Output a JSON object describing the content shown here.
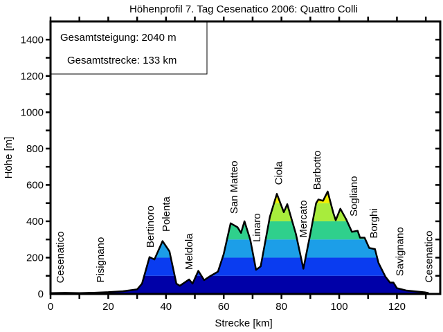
{
  "chart_data": {
    "type": "area",
    "title": "Höhenprofil  7. Tag Cesenatico 2006: Quattro Colli",
    "xlabel": "Strecke [km]",
    "ylabel": "Höhe [m]",
    "xlim": [
      0,
      135
    ],
    "ylim": [
      0,
      1500
    ],
    "xticks": [
      0,
      20,
      40,
      60,
      80,
      100,
      120
    ],
    "xtick_labels": [
      "0",
      "20",
      "40",
      "60",
      "80",
      "100",
      "120"
    ],
    "yticks": [
      0,
      200,
      400,
      600,
      800,
      1000,
      1200,
      1400
    ],
    "ytick_labels": [
      "0",
      "200",
      "400",
      "600",
      "800",
      "1000",
      "1200",
      "1400"
    ],
    "info": {
      "ascent": "Gesamtsteigung: 2040 m",
      "distance": "Gesamtstrecke: 133 km"
    },
    "bands": [
      {
        "from": 0,
        "to": 100,
        "color": "#0000a8"
      },
      {
        "from": 100,
        "to": 200,
        "color": "#0a3cf0"
      },
      {
        "from": 200,
        "to": 300,
        "color": "#1c9ee8"
      },
      {
        "from": 300,
        "to": 400,
        "color": "#2fd08c"
      },
      {
        "from": 400,
        "to": 500,
        "color": "#a8ec3c"
      },
      {
        "from": 500,
        "to": 600,
        "color": "#f2f000"
      }
    ],
    "profile": [
      [
        0,
        5
      ],
      [
        5,
        6
      ],
      [
        10,
        5
      ],
      [
        15,
        7
      ],
      [
        20,
        10
      ],
      [
        25,
        15
      ],
      [
        30,
        25
      ],
      [
        31.7,
        57
      ],
      [
        34.3,
        203
      ],
      [
        36,
        190
      ],
      [
        38.8,
        291
      ],
      [
        41.2,
        235
      ],
      [
        43.6,
        57
      ],
      [
        44.8,
        45
      ],
      [
        48,
        80
      ],
      [
        49.2,
        57
      ],
      [
        51.2,
        127
      ],
      [
        53.2,
        76
      ],
      [
        55,
        95
      ],
      [
        58,
        123
      ],
      [
        60,
        220
      ],
      [
        62.4,
        389
      ],
      [
        64.8,
        367
      ],
      [
        66,
        336
      ],
      [
        67.2,
        400
      ],
      [
        69.2,
        298
      ],
      [
        71.2,
        133
      ],
      [
        72.8,
        152
      ],
      [
        76,
        425
      ],
      [
        78.4,
        551
      ],
      [
        80.8,
        450
      ],
      [
        82,
        494
      ],
      [
        85,
        330
      ],
      [
        87.6,
        139
      ],
      [
        90,
        330
      ],
      [
        92,
        500
      ],
      [
        92.8,
        520
      ],
      [
        94.4,
        513
      ],
      [
        96,
        564
      ],
      [
        98,
        444
      ],
      [
        98.8,
        406
      ],
      [
        100.4,
        469
      ],
      [
        102.4,
        412
      ],
      [
        104.4,
        342
      ],
      [
        106.4,
        348
      ],
      [
        107.2,
        310
      ],
      [
        108.8,
        310
      ],
      [
        110.4,
        253
      ],
      [
        112.4,
        247
      ],
      [
        113.6,
        171
      ],
      [
        116,
        95
      ],
      [
        117.6,
        63
      ],
      [
        118.8,
        63
      ],
      [
        120,
        32
      ],
      [
        123.2,
        19
      ],
      [
        129.6,
        9
      ],
      [
        131,
        5
      ]
    ],
    "places": [
      {
        "name": "Cesenatico",
        "km": 3.4
      },
      {
        "name": "Pisignano",
        "km": 17.3
      },
      {
        "name": "Bertinoro",
        "km": 34.5
      },
      {
        "name": "Polenta",
        "km": 40
      },
      {
        "name": "Meldola",
        "km": 48
      },
      {
        "name": "San Matteo",
        "km": 63.5
      },
      {
        "name": "Linaro",
        "km": 71.5
      },
      {
        "name": "Ciola",
        "km": 79
      },
      {
        "name": "Mercato",
        "km": 87.5
      },
      {
        "name": "Barbotto",
        "km": 92.3
      },
      {
        "name": "Sogliano",
        "km": 105
      },
      {
        "name": "Borghi",
        "km": 112
      },
      {
        "name": "Savignano",
        "km": 121
      },
      {
        "name": "Cesenatico",
        "km": 131
      }
    ]
  }
}
